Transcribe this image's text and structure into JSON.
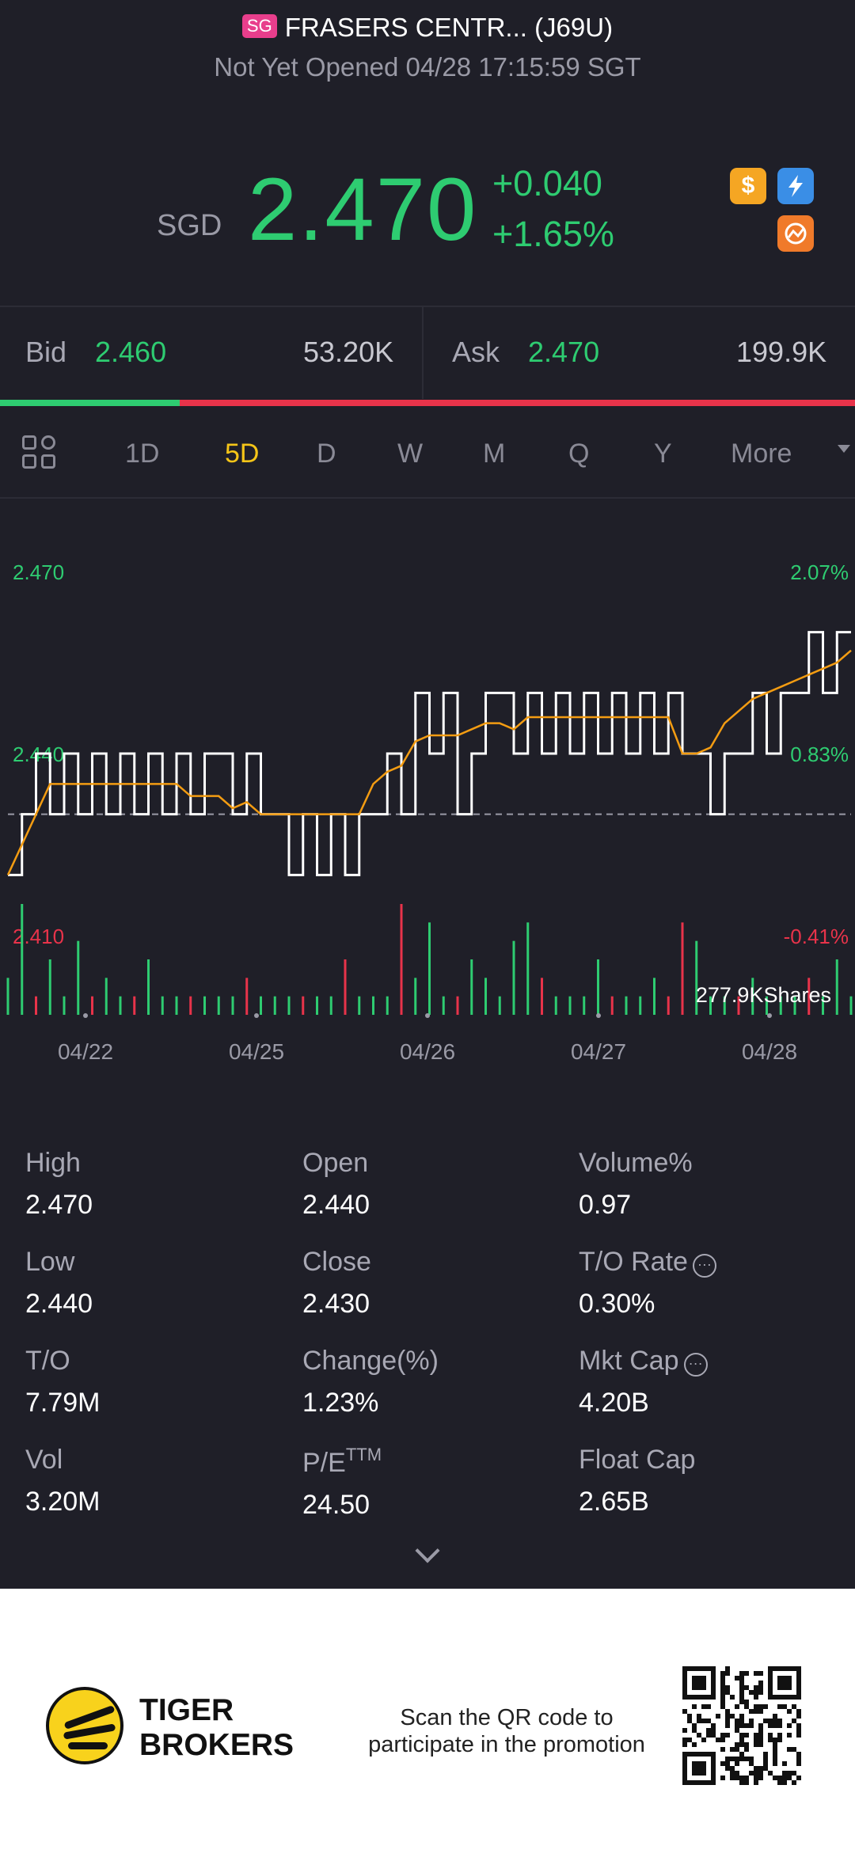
{
  "header": {
    "market_badge": "SG",
    "title": "FRASERS CENTR... (J69U)",
    "status": "Not Yet Opened 04/28 17:15:59 SGT"
  },
  "quote": {
    "currency": "SGD",
    "price": "2.470",
    "change": "+0.040",
    "change_pct": "+1.65%",
    "up_color": "#2ecc71",
    "down_color": "#e8334a",
    "icons": [
      "dollar-icon",
      "lightning-icon",
      "chart-badge-icon"
    ]
  },
  "orderbook": {
    "bid_label": "Bid",
    "bid_price": "2.460",
    "bid_size": "53.20K",
    "ask_label": "Ask",
    "ask_price": "2.470",
    "ask_size": "199.9K",
    "bid_ratio": 0.21
  },
  "tabs": {
    "items": [
      "1D",
      "5D",
      "D",
      "W",
      "M",
      "Q",
      "Y",
      "More"
    ],
    "active": "5D"
  },
  "chart_data": {
    "type": "line",
    "y_labels_left": [
      "2.470",
      "2.440",
      "2.410"
    ],
    "y_labels_right": [
      "2.07%",
      "0.83%",
      "-0.41%"
    ],
    "ylim": [
      2.41,
      2.47
    ],
    "prev_close": 2.43,
    "x_ticks": [
      "04/22",
      "04/25",
      "04/26",
      "04/27",
      "04/28"
    ],
    "volume_label": "277.9KShares",
    "series": [
      {
        "values": [
          2.42,
          2.43,
          2.44,
          2.43,
          2.44,
          2.43,
          2.44,
          2.43,
          2.44,
          2.43,
          2.44,
          2.43,
          2.44,
          2.43,
          2.44,
          2.44,
          2.43,
          2.44,
          2.43,
          2.43,
          2.42,
          2.43,
          2.42,
          2.43,
          2.42,
          2.43,
          2.43,
          2.44,
          2.43,
          2.45,
          2.44,
          2.45,
          2.43,
          2.44,
          2.45,
          2.45,
          2.44,
          2.45,
          2.44,
          2.45,
          2.44,
          2.45,
          2.44,
          2.45,
          2.44,
          2.45,
          2.44,
          2.45,
          2.44,
          2.44,
          2.43,
          2.44,
          2.44,
          2.45,
          2.44,
          2.45,
          2.45,
          2.46,
          2.45,
          2.46,
          2.46
        ]
      },
      {
        "values": [
          2.42,
          2.425,
          2.43,
          2.435,
          2.435,
          2.435,
          2.435,
          2.435,
          2.435,
          2.435,
          2.435,
          2.435,
          2.435,
          2.433,
          2.433,
          2.433,
          2.431,
          2.432,
          2.43,
          2.43,
          2.43,
          2.43,
          2.43,
          2.43,
          2.43,
          2.43,
          2.435,
          2.437,
          2.438,
          2.442,
          2.443,
          2.443,
          2.443,
          2.444,
          2.445,
          2.445,
          2.444,
          2.446,
          2.446,
          2.446,
          2.446,
          2.446,
          2.446,
          2.446,
          2.446,
          2.446,
          2.446,
          2.446,
          2.44,
          2.44,
          2.441,
          2.445,
          2.447,
          2.449,
          2.45,
          2.451,
          2.452,
          2.453,
          2.454,
          2.455,
          2.457
        ]
      }
    ],
    "volumes": [
      2,
      6,
      1,
      3,
      1,
      4,
      1,
      2,
      1,
      1,
      3,
      1,
      1,
      1,
      1,
      1,
      1,
      2,
      1,
      1,
      1,
      1,
      1,
      1,
      3,
      1,
      1,
      1,
      6,
      2,
      5,
      1,
      1,
      3,
      2,
      1,
      4,
      5,
      2,
      1,
      1,
      1,
      3,
      1,
      1,
      1,
      2,
      1,
      5,
      4,
      1,
      1,
      1,
      2,
      1,
      1,
      1,
      2,
      1,
      3,
      1
    ],
    "volume_up": [
      true,
      true,
      false,
      true,
      true,
      true,
      false,
      true,
      true,
      false,
      true,
      true,
      true,
      false,
      true,
      true,
      true,
      false,
      true,
      true,
      true,
      false,
      true,
      true,
      false,
      true,
      true,
      true,
      false,
      true,
      true,
      true,
      false,
      true,
      true,
      true,
      true,
      true,
      false,
      true,
      true,
      true,
      true,
      false,
      true,
      true,
      true,
      false,
      false,
      true,
      true,
      true,
      false,
      true,
      true,
      true,
      true,
      false,
      true,
      true,
      true
    ]
  },
  "stats": {
    "high_label": "High",
    "high": "2.470",
    "open_label": "Open",
    "open": "2.440",
    "volpct_label": "Volume%",
    "volpct": "0.97",
    "low_label": "Low",
    "low": "2.440",
    "close_label": "Close",
    "close": "2.430",
    "to_rate_label": "T/O Rate",
    "to_rate": "0.30%",
    "to_label": "T/O",
    "to": "7.79M",
    "chgpct_label": "Change(%)",
    "chgpct": "1.23%",
    "mktcap_label": "Mkt Cap",
    "mktcap": "4.20B",
    "vol_label": "Vol",
    "vol": "3.20M",
    "pe_label": "P/E",
    "pe_sup": "TTM",
    "pe": "24.50",
    "floatcap_label": "Float Cap",
    "floatcap": "2.65B"
  },
  "footer": {
    "brand_line1": "TIGER",
    "brand_line2": "BROKERS",
    "promo_line1": "Scan the QR code to",
    "promo_line2": "participate in the promotion"
  }
}
